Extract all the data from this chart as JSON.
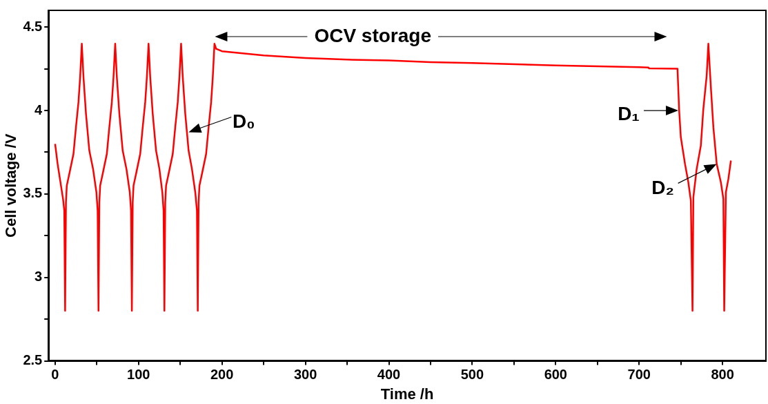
{
  "chart_data": {
    "type": "line",
    "xlabel": "Time /h",
    "ylabel": "Cell voltage /V",
    "xlim": [
      -8,
      852
    ],
    "ylim": [
      2.5,
      4.6
    ],
    "xticks": [
      0,
      {
        "value": 50,
        "label": null
      },
      100,
      {
        "value": 150,
        "label": null
      },
      200,
      {
        "value": 250,
        "label": null
      },
      300,
      {
        "value": 350,
        "label": null
      },
      400,
      {
        "value": 450,
        "label": null
      },
      500,
      {
        "value": 550,
        "label": null
      },
      600,
      {
        "value": 650,
        "label": null
      },
      700,
      {
        "value": 750,
        "label": null
      },
      800
    ],
    "yticks": [
      2.5,
      {
        "value": 2.75,
        "label": null
      },
      3,
      {
        "value": 3.25,
        "label": null
      },
      3.5,
      {
        "value": 3.75,
        "label": null
      },
      4,
      {
        "value": 4.25,
        "label": null
      },
      4.5
    ],
    "grid": false,
    "legend": false,
    "marker": "none",
    "line_style": "solid",
    "series": [
      {
        "color": "#ff0000",
        "x": [
          0,
          3,
          9.5,
          11,
          12,
          13,
          14,
          17,
          22,
          25,
          28,
          30,
          32,
          34,
          37,
          41,
          45.5,
          49.5,
          51,
          52,
          53,
          54,
          57,
          62,
          65,
          68,
          70,
          72,
          74,
          77,
          81,
          85.5,
          89.5,
          91,
          92,
          93,
          94,
          97,
          102,
          105,
          108,
          110,
          112,
          114,
          117,
          121,
          125,
          128.5,
          130,
          131,
          132,
          133,
          136,
          141,
          144,
          147,
          149,
          151,
          153,
          156,
          160,
          164,
          168,
          170,
          171,
          172,
          173,
          176,
          181,
          184,
          187,
          189,
          191,
          193,
          200,
          250,
          300,
          350,
          400,
          450,
          500,
          600,
          700,
          711,
          712,
          746,
          748,
          750,
          755,
          759,
          762,
          764,
          765,
          769,
          774,
          777,
          781,
          783,
          786,
          789,
          793,
          798,
          801,
          802,
          804,
          807,
          810
        ],
        "values": [
          3.8,
          3.68,
          3.47,
          3.4,
          2.8,
          3.45,
          3.55,
          3.62,
          3.74,
          3.9,
          4.05,
          4.2,
          4.4,
          4.2,
          3.98,
          3.76,
          3.65,
          3.51,
          3.4,
          2.8,
          3.45,
          3.55,
          3.62,
          3.74,
          3.9,
          4.05,
          4.2,
          4.4,
          4.2,
          3.98,
          3.76,
          3.65,
          3.51,
          3.4,
          2.8,
          3.45,
          3.55,
          3.62,
          3.74,
          3.9,
          4.05,
          4.2,
          4.4,
          4.2,
          3.98,
          3.76,
          3.65,
          3.51,
          3.4,
          2.8,
          3.45,
          3.55,
          3.62,
          3.74,
          3.9,
          4.05,
          4.2,
          4.4,
          4.2,
          3.98,
          3.76,
          3.65,
          3.51,
          3.4,
          2.8,
          3.45,
          3.55,
          3.62,
          3.74,
          3.9,
          4.05,
          4.2,
          4.4,
          4.37,
          4.355,
          4.33,
          4.315,
          4.305,
          4.3,
          4.29,
          4.285,
          4.27,
          4.26,
          4.258,
          4.252,
          4.25,
          4.0,
          3.84,
          3.68,
          3.57,
          3.46,
          2.8,
          3.48,
          3.65,
          3.79,
          4.01,
          4.21,
          4.4,
          4.14,
          3.9,
          3.68,
          3.57,
          3.47,
          2.8,
          3.51,
          3.59,
          3.7
        ]
      }
    ],
    "annotations": [
      "OCV storage",
      {
        "text": "D₀",
        "x": 160,
        "y": 3.87
      },
      {
        "text": "D₁",
        "x": 747,
        "y": 4.0
      },
      {
        "text": "D₂",
        "x": 793,
        "y": 3.68
      }
    ]
  }
}
